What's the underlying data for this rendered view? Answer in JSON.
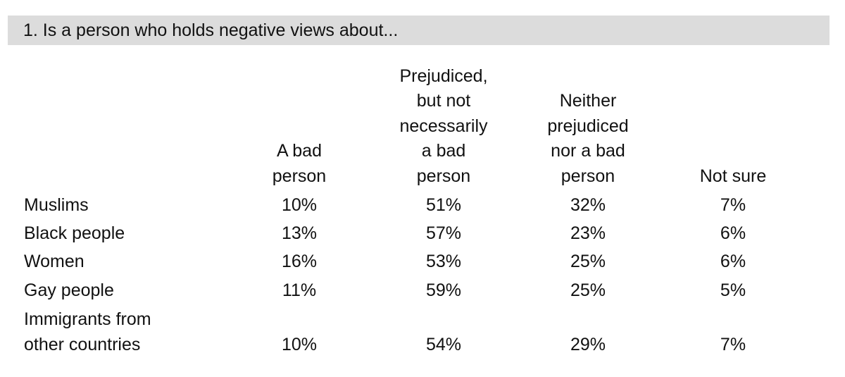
{
  "title": "1. Is a person who holds negative views about...",
  "chart_data": {
    "type": "table",
    "title": "1. Is a person who holds negative views about...",
    "columns": [
      [
        "A bad",
        "person"
      ],
      [
        "Prejudiced,",
        "but not",
        "necessarily",
        "a bad",
        "person"
      ],
      [
        "Neither",
        "prejudiced",
        "nor a bad",
        "person"
      ],
      [
        "Not sure"
      ]
    ],
    "rows": [
      {
        "label": [
          "Muslims"
        ],
        "values": [
          "10%",
          "51%",
          "32%",
          "7%"
        ]
      },
      {
        "label": [
          "Black people"
        ],
        "values": [
          "13%",
          "57%",
          "23%",
          "6%"
        ]
      },
      {
        "label": [
          "Women"
        ],
        "values": [
          "16%",
          "53%",
          "25%",
          "6%"
        ]
      },
      {
        "label": [
          "Gay people"
        ],
        "values": [
          "11%",
          "59%",
          "25%",
          "5%"
        ]
      },
      {
        "label": [
          "Immigrants from",
          "other countries"
        ],
        "values": [
          "10%",
          "54%",
          "29%",
          "7%"
        ]
      }
    ]
  }
}
